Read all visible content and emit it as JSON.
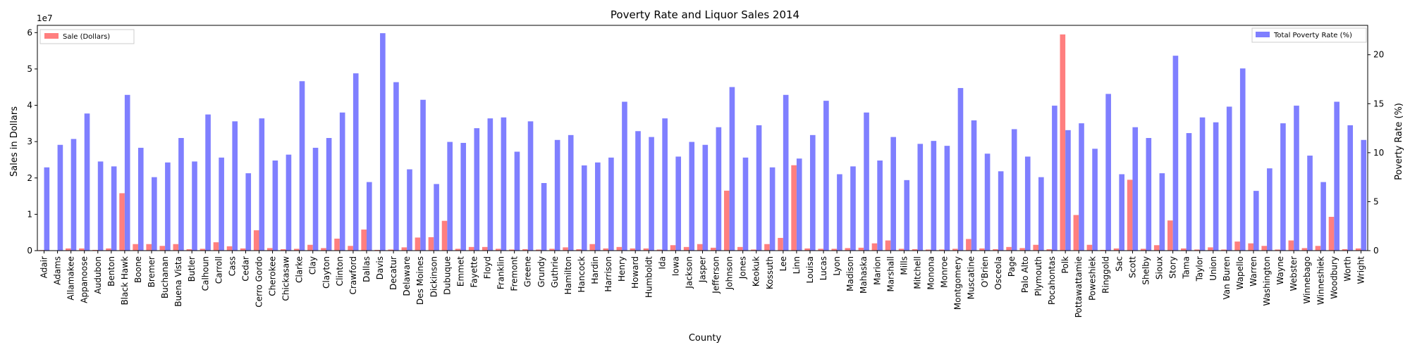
{
  "chart_data": {
    "type": "bar",
    "title": "Poverty Rate and Liquor Sales 2014",
    "xlabel": "County",
    "ylabel_left": "Sales in Dollars",
    "ylabel_right": "Poverty Rate (%)",
    "left_scale_label": "1e7",
    "left_ylim": [
      0,
      6.2
    ],
    "left_ticks": [
      0,
      1,
      2,
      3,
      4,
      5,
      6
    ],
    "right_ylim": [
      0,
      23.0
    ],
    "right_ticks": [
      0,
      5,
      10,
      15,
      20
    ],
    "grid": false,
    "legend_left": {
      "position": "top-left",
      "label": "Sale (Dollars)",
      "color": "#ff7f7f"
    },
    "legend_right": {
      "position": "top-right",
      "label": "Total Poverty Rate (%)",
      "color": "#7f7fff"
    },
    "categories": [
      "Adair",
      "Adams",
      "Allamakee",
      "Appanoose",
      "Audubon",
      "Benton",
      "Black Hawk",
      "Boone",
      "Bremer",
      "Buchanan",
      "Buena Vista",
      "Butler",
      "Calhoun",
      "Carroll",
      "Cass",
      "Cedar",
      "Cerro Gordo",
      "Cherokee",
      "Chickasaw",
      "Clarke",
      "Clay",
      "Clayton",
      "Clinton",
      "Crawford",
      "Dallas",
      "Davis",
      "Decatur",
      "Delaware",
      "Des Moines",
      "Dickinson",
      "Dubuque",
      "Emmet",
      "Fayette",
      "Floyd",
      "Franklin",
      "Fremont",
      "Greene",
      "Grundy",
      "Guthrie",
      "Hamilton",
      "Hancock",
      "Hardin",
      "Harrison",
      "Henry",
      "Howard",
      "Humboldt",
      "Ida",
      "Iowa",
      "Jackson",
      "Jasper",
      "Jefferson",
      "Johnson",
      "Jones",
      "Keokuk",
      "Kossuth",
      "Lee",
      "Linn",
      "Louisa",
      "Lucas",
      "Lyon",
      "Madison",
      "Mahaska",
      "Marion",
      "Marshall",
      "Mills",
      "Mitchell",
      "Monona",
      "Monroe",
      "Montgomery",
      "Muscatine",
      "O'Brien",
      "Osceola",
      "Page",
      "Palo Alto",
      "Plymouth",
      "Pocahontas",
      "Polk",
      "Pottawattamie",
      "Poweshiek",
      "Ringgold",
      "Sac",
      "Scott",
      "Shelby",
      "Sioux",
      "Story",
      "Tama",
      "Taylor",
      "Union",
      "Van Buren",
      "Wapello",
      "Warren",
      "Washington",
      "Wayne",
      "Webster",
      "Winnebago",
      "Winneshiek",
      "Woodbury",
      "Worth",
      "Wright"
    ],
    "series": [
      {
        "name": "Sale (Dollars)",
        "axis": "left",
        "color": "#ff7f7f",
        "values": [
          0.15,
          0.1,
          0.6,
          0.6,
          0.2,
          0.6,
          15.8,
          1.8,
          1.8,
          1.3,
          1.8,
          0.4,
          0.5,
          2.3,
          1.2,
          0.6,
          5.6,
          0.7,
          0.4,
          0.5,
          1.6,
          0.7,
          3.3,
          1.3,
          5.8,
          0.2,
          0.3,
          0.9,
          3.6,
          3.7,
          8.2,
          0.5,
          1.0,
          1.0,
          0.5,
          0.3,
          0.4,
          0.3,
          0.5,
          0.9,
          0.4,
          1.8,
          0.6,
          1.0,
          0.6,
          0.6,
          0.3,
          1.5,
          1.0,
          1.8,
          0.8,
          16.5,
          1.0,
          0.3,
          1.8,
          3.5,
          23.5,
          0.6,
          0.5,
          0.5,
          0.7,
          0.8,
          2.0,
          2.8,
          0.5,
          0.4,
          0.3,
          0.3,
          0.5,
          3.2,
          0.6,
          0.4,
          1.0,
          0.7,
          1.6,
          0.4,
          59.5,
          9.8,
          1.6,
          0.2,
          0.6,
          19.5,
          0.5,
          1.5,
          8.3,
          0.6,
          0.3,
          0.9,
          0.3,
          2.5,
          2.0,
          1.3,
          0.3,
          2.8,
          0.7,
          1.3,
          9.3,
          0.4,
          0.6
        ]
      },
      {
        "name": "Total Poverty Rate (%)",
        "axis": "right",
        "color": "#7f7fff",
        "values": [
          8.5,
          10.8,
          11.4,
          14.0,
          9.1,
          8.6,
          15.9,
          10.5,
          7.5,
          9.0,
          11.5,
          9.1,
          13.9,
          9.5,
          13.2,
          7.9,
          13.5,
          9.2,
          9.8,
          17.3,
          10.5,
          11.5,
          14.1,
          18.1,
          7.0,
          22.2,
          17.2,
          8.3,
          15.4,
          6.8,
          11.1,
          11.0,
          12.5,
          13.5,
          13.6,
          10.1,
          13.2,
          6.9,
          11.3,
          11.8,
          8.7,
          9.0,
          9.5,
          15.2,
          12.2,
          11.6,
          13.5,
          9.6,
          11.1,
          10.8,
          12.6,
          16.7,
          9.5,
          12.8,
          8.5,
          15.9,
          9.4,
          11.8,
          15.3,
          7.8,
          8.6,
          14.1,
          9.2,
          11.6,
          7.2,
          10.9,
          11.2,
          10.7,
          16.6,
          13.3,
          9.9,
          8.1,
          12.4,
          9.6,
          7.5,
          14.8,
          12.3,
          13.0,
          10.4,
          16.0,
          7.8,
          12.6,
          11.5,
          7.9,
          19.9,
          12.0,
          13.6,
          13.1,
          14.7,
          18.6,
          6.1,
          8.4,
          13.0,
          14.8,
          9.7,
          7.0,
          15.2,
          12.8,
          11.3
        ]
      }
    ]
  }
}
